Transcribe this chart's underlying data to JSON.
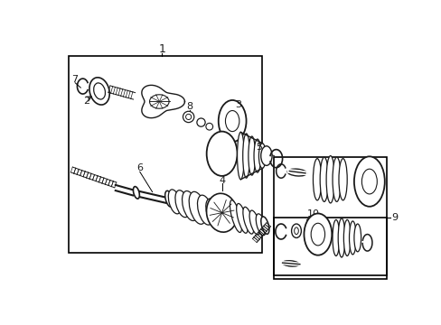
{
  "bg_color": "#ffffff",
  "line_color": "#1a1a1a",
  "fig_width": 4.89,
  "fig_height": 3.6,
  "dpi": 100
}
